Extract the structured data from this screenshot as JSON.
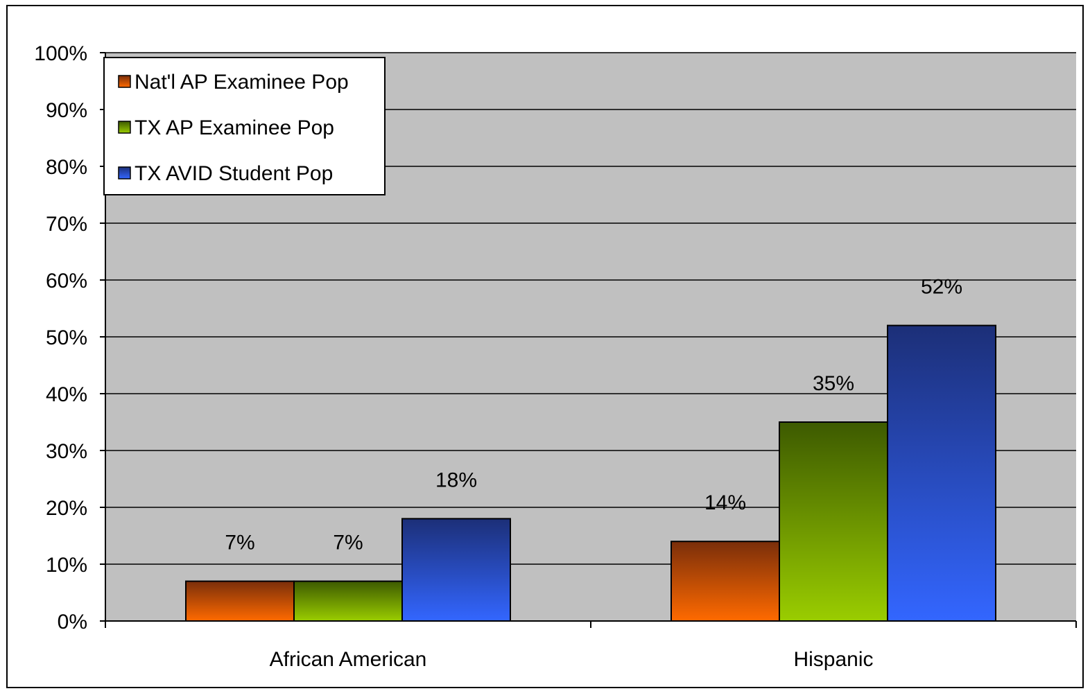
{
  "chart_data": {
    "type": "bar",
    "categories": [
      "African American",
      "Hispanic"
    ],
    "series": [
      {
        "name": "Nat'l AP Examinee Pop",
        "values": [
          7,
          14
        ],
        "labels": [
          "7%",
          "14%"
        ],
        "color_top": "#7a2e0a",
        "color_bottom": "#ff6a00"
      },
      {
        "name": "TX AP Examinee Pop",
        "values": [
          7,
          35
        ],
        "labels": [
          "7%",
          "35%"
        ],
        "color_top": "#3d5a00",
        "color_bottom": "#9acd00"
      },
      {
        "name": "TX AVID Student Pop",
        "values": [
          18,
          52
        ],
        "labels": [
          "18%",
          "52%"
        ],
        "color_top": "#1c2f78",
        "color_bottom": "#3366ff"
      }
    ],
    "ylim": [
      0,
      100
    ],
    "yticks": [
      "0%",
      "10%",
      "20%",
      "30%",
      "40%",
      "50%",
      "60%",
      "70%",
      "80%",
      "90%",
      "100%"
    ],
    "grid": true,
    "legend_position": "top-left",
    "plot_background": "#c0c0c0",
    "title": "",
    "xlabel": "",
    "ylabel": ""
  }
}
